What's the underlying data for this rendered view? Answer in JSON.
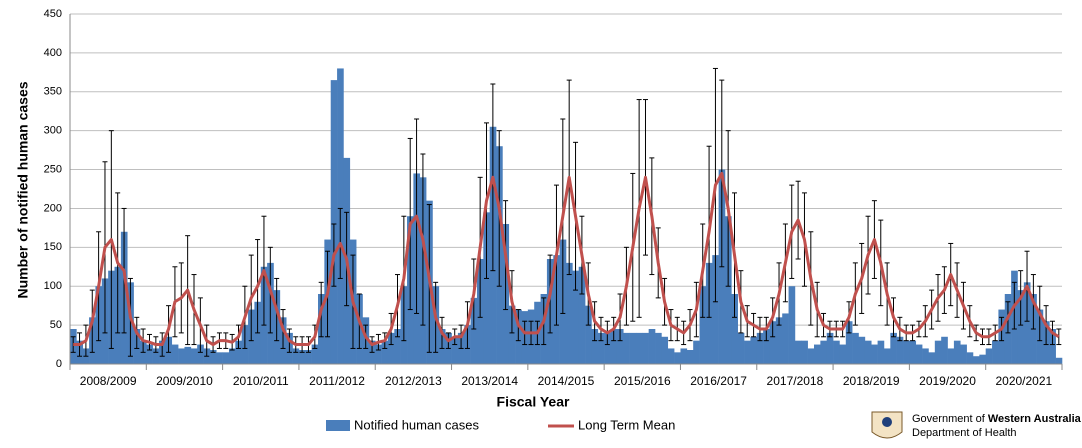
{
  "chart_data": {
    "type": "bar_line_errorbar",
    "y_label": "Number of notified human cases",
    "x_label": "Fiscal Year",
    "categories": [
      "2008/2009",
      "2009/2010",
      "2010/2011",
      "2011/2012",
      "2012/2013",
      "2013/2014",
      "2014/2015",
      "2015/2016",
      "2016/2017",
      "2017/2018",
      "2018/2019",
      "2019/2020",
      "2020/2021"
    ],
    "ylim": [
      0,
      450
    ],
    "yticks": [
      0,
      50,
      100,
      150,
      200,
      250,
      300,
      350,
      400,
      450
    ],
    "grid": true,
    "series": [
      {
        "name": "Notified human cases",
        "type": "bar",
        "color": "#4a7ebb",
        "values": [
          [
            45,
            30,
            20,
            60,
            100,
            110,
            120,
            125,
            170,
            105,
            45,
            30
          ],
          [
            25,
            20,
            30,
            35,
            25,
            20,
            22,
            20,
            25,
            20,
            18,
            15
          ],
          [
            15,
            20,
            30,
            50,
            70,
            80,
            125,
            130,
            95,
            60,
            40,
            20
          ],
          [
            18,
            18,
            25,
            90,
            160,
            365,
            380,
            265,
            160,
            90,
            60,
            30
          ],
          [
            25,
            30,
            40,
            45,
            100,
            190,
            245,
            240,
            210,
            100,
            45,
            40
          ],
          [
            35,
            40,
            50,
            85,
            135,
            195,
            305,
            280,
            180,
            75,
            70,
            68
          ],
          [
            70,
            80,
            90,
            135,
            140,
            160,
            130,
            120,
            125,
            75,
            45,
            40
          ],
          [
            40,
            45,
            45,
            40,
            40,
            40,
            40,
            45,
            40,
            35,
            20,
            15
          ],
          [
            20,
            18,
            30,
            100,
            130,
            140,
            250,
            190,
            90,
            40,
            30,
            35
          ],
          [
            40,
            45,
            55,
            60,
            65,
            100,
            30,
            30,
            20,
            25,
            30,
            40
          ],
          [
            30,
            25,
            55,
            40,
            35,
            30,
            25,
            30,
            20,
            40,
            35,
            30
          ],
          [
            30,
            25,
            20,
            15,
            30,
            35,
            20,
            30,
            25,
            15,
            10,
            12
          ],
          [
            20,
            30,
            70,
            90,
            120,
            95,
            105,
            90,
            70,
            55,
            45,
            8
          ]
        ]
      },
      {
        "name": "Long Term Mean",
        "type": "line",
        "color": "#c0504d",
        "values": [
          [
            25,
            25,
            30,
            55,
            100,
            150,
            160,
            130,
            120,
            60,
            40,
            30
          ],
          [
            28,
            25,
            25,
            45,
            80,
            85,
            95,
            70,
            50,
            30,
            25,
            30
          ],
          [
            30,
            28,
            35,
            60,
            85,
            100,
            120,
            95,
            70,
            45,
            30,
            25
          ],
          [
            25,
            25,
            35,
            70,
            90,
            140,
            155,
            135,
            80,
            55,
            35,
            25
          ],
          [
            28,
            30,
            45,
            75,
            110,
            180,
            190,
            160,
            110,
            60,
            40,
            30
          ],
          [
            35,
            35,
            50,
            90,
            150,
            210,
            240,
            200,
            140,
            80,
            50,
            40
          ],
          [
            40,
            40,
            55,
            90,
            140,
            190,
            240,
            190,
            140,
            90,
            55,
            45
          ],
          [
            40,
            45,
            60,
            100,
            150,
            200,
            240,
            190,
            130,
            80,
            50,
            45
          ],
          [
            40,
            50,
            70,
            120,
            170,
            230,
            245,
            200,
            140,
            80,
            55,
            50
          ],
          [
            45,
            45,
            60,
            90,
            130,
            170,
            185,
            160,
            110,
            70,
            50,
            45
          ],
          [
            45,
            45,
            60,
            90,
            110,
            140,
            160,
            130,
            90,
            60,
            45,
            40
          ],
          [
            40,
            45,
            55,
            70,
            85,
            95,
            115,
            95,
            75,
            55,
            40,
            35
          ],
          [
            35,
            40,
            45,
            60,
            75,
            85,
            100,
            80,
            65,
            50,
            40,
            35
          ]
        ],
        "errors": [
          [
            10,
            15,
            20,
            40,
            70,
            110,
            140,
            90,
            80,
            50,
            20,
            15
          ],
          [
            10,
            10,
            15,
            30,
            45,
            45,
            70,
            45,
            35,
            20,
            10,
            10
          ],
          [
            10,
            10,
            15,
            40,
            55,
            60,
            70,
            55,
            40,
            25,
            15,
            10
          ],
          [
            10,
            10,
            15,
            35,
            55,
            40,
            45,
            60,
            60,
            35,
            15,
            10
          ],
          [
            10,
            10,
            20,
            40,
            80,
            110,
            125,
            110,
            95,
            45,
            20,
            10
          ],
          [
            10,
            15,
            30,
            45,
            90,
            100,
            120,
            100,
            70,
            40,
            20,
            15
          ],
          [
            15,
            15,
            30,
            50,
            90,
            125,
            125,
            95,
            50,
            40,
            25,
            15
          ],
          [
            15,
            15,
            30,
            50,
            95,
            140,
            100,
            75,
            45,
            30,
            20,
            15
          ],
          [
            15,
            20,
            35,
            60,
            110,
            150,
            120,
            100,
            80,
            40,
            20,
            15
          ],
          [
            15,
            15,
            25,
            40,
            50,
            60,
            50,
            60,
            60,
            35,
            15,
            10
          ],
          [
            10,
            10,
            20,
            40,
            45,
            50,
            50,
            55,
            40,
            25,
            15,
            10
          ],
          [
            10,
            10,
            20,
            25,
            30,
            30,
            40,
            35,
            30,
            20,
            10,
            10
          ],
          [
            10,
            10,
            15,
            20,
            30,
            35,
            45,
            35,
            35,
            25,
            15,
            10
          ]
        ]
      }
    ]
  },
  "logo": {
    "line1_prefix": "Government of",
    "line1_bold": "Western Australia",
    "line2": "Department of Health"
  }
}
